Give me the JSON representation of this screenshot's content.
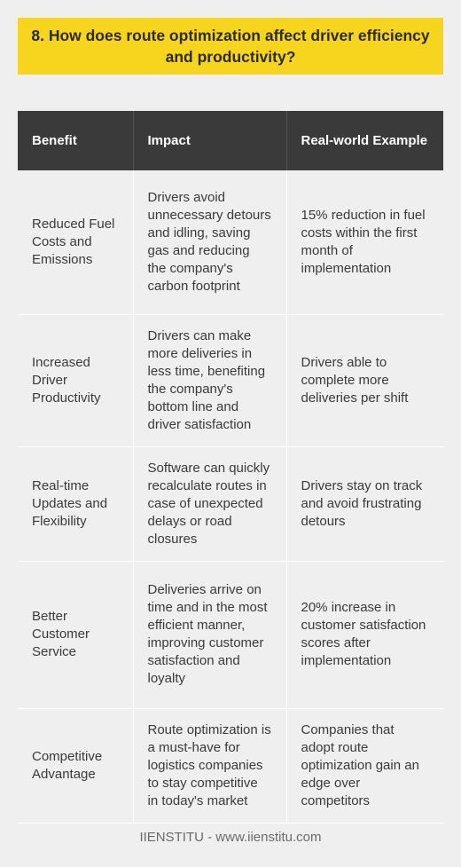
{
  "title": "8. How does route optimization affect driver efficiency and productivity?",
  "table": {
    "headers": [
      "Benefit",
      "Impact",
      "Real-world Example"
    ],
    "rows": [
      {
        "benefit": "Reduced Fuel Costs and Emissions",
        "impact": "Drivers avoid unnecessary detours and idling, saving gas and reducing the company's carbon footprint",
        "example": "15% reduction in fuel costs within the first month of implementation"
      },
      {
        "benefit": "Increased Driver Productivity",
        "impact": "Drivers can make more deliveries in less time, benefiting the company's bottom line and driver satisfaction",
        "example": "Drivers able to complete more deliveries per shift"
      },
      {
        "benefit": "Real-time Updates and Flexibility",
        "impact": "Software can quickly recalculate routes in case of unexpected delays or road closures",
        "example": "Drivers stay on track and avoid frustrating detours"
      },
      {
        "benefit": "Better Customer Service",
        "impact": "Deliveries arrive on time and in the most efficient manner, improving customer satisfaction and loyalty",
        "example": "20% increase in customer satisfaction scores after implementation"
      },
      {
        "benefit": "Competitive Advantage",
        "impact": "Route optimization is a must-have for logistics companies to stay competitive in today's market",
        "example": "Companies that adopt route optimization gain an edge over competitors"
      }
    ]
  },
  "footer": "IIENSTITU - www.iienstitu.com"
}
